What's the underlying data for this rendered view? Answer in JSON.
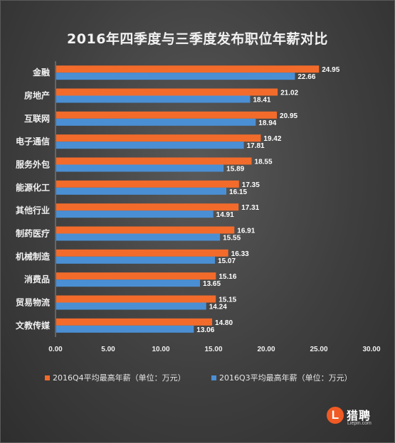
{
  "chart_data": {
    "type": "bar",
    "orientation": "horizontal",
    "title": "2016年四季度与三季度发布职位年薪对比",
    "categories": [
      "金融",
      "房地产",
      "互联网",
      "电子通信",
      "服务外包",
      "能源化工",
      "其他行业",
      "制药医疗",
      "机械制造",
      "消费品",
      "贸易物流",
      "文教传媒"
    ],
    "series": [
      {
        "name": "2016Q4平均最高年薪（单位：万元）",
        "color": "#f26b2b",
        "values": [
          24.95,
          21.02,
          20.95,
          19.42,
          18.55,
          17.35,
          17.31,
          16.91,
          16.33,
          15.16,
          15.15,
          14.8
        ],
        "labels": [
          "24.95",
          "21.02",
          "20.95",
          "19.42",
          "18.55",
          "17.35",
          "17.31",
          "16.91",
          "16.33",
          "15.16",
          "15.15",
          "14.80"
        ]
      },
      {
        "name": "2016Q3平均最高年薪（单位：万元）",
        "color": "#4a8fd4",
        "values": [
          22.66,
          18.41,
          18.94,
          17.81,
          15.89,
          16.15,
          14.91,
          15.55,
          15.07,
          13.65,
          14.24,
          13.06
        ],
        "labels": [
          "22.66",
          "18.41",
          "18.94",
          "17.81",
          "15.89",
          "16.15",
          "14.91",
          "15.55",
          "15.07",
          "13.65",
          "14.24",
          "13.06"
        ]
      }
    ],
    "xlim": [
      0,
      30
    ],
    "xticks": [
      "0.00",
      "5.00",
      "10.00",
      "15.00",
      "20.00",
      "25.00",
      "30.00"
    ],
    "grid": false,
    "legend_position": "bottom"
  },
  "logo": {
    "badge": "L",
    "name": "猎聘",
    "domain": "Liepin.com"
  }
}
